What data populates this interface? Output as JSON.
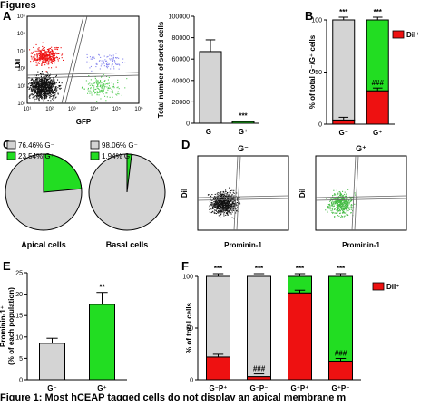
{
  "header": "Figures",
  "footer": "Figure 1: Most hCEAP tagged cells do not display an apical membrane m",
  "panels": {
    "A": {
      "label": "A",
      "xlabel": "GFP",
      "ylabel": "DiI",
      "xticks": [
        "10¹",
        "10²",
        "10³",
        "10⁴",
        "10⁵",
        "10⁶"
      ],
      "yticks": [
        "10¹",
        "10²",
        "10³",
        "10⁴",
        "10⁵",
        "10⁶"
      ]
    },
    "B": {
      "label": "B"
    },
    "C": {
      "label": "C",
      "titles": [
        "Apical cells",
        "Basal cells"
      ],
      "legend_left": [
        "76.46% G⁻",
        "23.54% G⁺"
      ],
      "legend_right": [
        "98.06% G⁻",
        "1.94% G⁺"
      ]
    },
    "D": {
      "label": "D",
      "titles": [
        "G⁻",
        "G⁺"
      ],
      "xlabel": "Prominin-1",
      "ylabel": "DiI"
    },
    "E": {
      "label": "E"
    },
    "F": {
      "label": "F"
    }
  },
  "colors": {
    "gray": "#d4d4d4",
    "green": "#22dd22",
    "red": "#ee1111",
    "black": "#111111"
  },
  "chart_data": [
    {
      "id": "A2",
      "type": "bar",
      "categories": [
        "G⁻",
        "G⁺"
      ],
      "values": [
        67000,
        1500
      ],
      "errors": [
        11000,
        500
      ],
      "ylabel": "Total number of sorted cells",
      "ylim": [
        0,
        100000
      ],
      "yticks": [
        0,
        20000,
        40000,
        60000,
        80000,
        100000
      ],
      "annotations": [
        "",
        "***"
      ],
      "fills": [
        "#d4d4d4",
        "#22dd22"
      ]
    },
    {
      "id": "B",
      "type": "bar",
      "stacked": true,
      "categories": [
        "G⁻",
        "G⁺"
      ],
      "series": [
        {
          "name": "DiI⁺",
          "values": [
            4,
            32
          ]
        },
        {
          "name": "",
          "values": [
            96,
            68
          ]
        }
      ],
      "ylabel": "% of total G⁻/G⁺ cells",
      "ylim": [
        0,
        100
      ],
      "yticks": [
        0,
        50,
        100
      ],
      "top_annotations": [
        "***",
        "***"
      ],
      "inner_annotations": [
        "",
        "###"
      ],
      "top_fills": [
        "#d4d4d4",
        "#22dd22"
      ]
    },
    {
      "id": "C1",
      "type": "pie",
      "title": "Apical cells",
      "labels": [
        "G⁻",
        "G⁺"
      ],
      "values": [
        76.46,
        23.54
      ]
    },
    {
      "id": "C2",
      "type": "pie",
      "title": "Basal cells",
      "labels": [
        "G⁻",
        "G⁺"
      ],
      "values": [
        98.06,
        1.94
      ]
    },
    {
      "id": "E",
      "type": "bar",
      "categories": [
        "G⁻",
        "G⁺"
      ],
      "values": [
        8.5,
        17.6
      ],
      "errors": [
        1.2,
        2.8
      ],
      "ylabel": "Prominin-1⁺\n(% of each population)",
      "ylim": [
        0,
        25
      ],
      "yticks": [
        0,
        5,
        10,
        15,
        20,
        25
      ],
      "annotations": [
        "",
        "**"
      ],
      "fills": [
        "#d4d4d4",
        "#22dd22"
      ]
    },
    {
      "id": "F",
      "type": "bar",
      "stacked": true,
      "categories": [
        "G⁻P⁺",
        "G⁻P⁻",
        "G⁺P⁺",
        "G⁺P⁻"
      ],
      "series": [
        {
          "name": "DiI⁺",
          "values": [
            22,
            3,
            84,
            18
          ]
        },
        {
          "name": "",
          "values": [
            78,
            97,
            16,
            82
          ]
        }
      ],
      "ylabel": "% of total cells",
      "ylim": [
        0,
        100
      ],
      "yticks": [
        0,
        50,
        100
      ],
      "top_annotations": [
        "***",
        "***",
        "***",
        "***"
      ],
      "inner_annotations": [
        "",
        "###",
        "",
        "###"
      ],
      "top_fills": [
        "#d4d4d4",
        "#d4d4d4",
        "#22dd22",
        "#22dd22"
      ]
    }
  ]
}
